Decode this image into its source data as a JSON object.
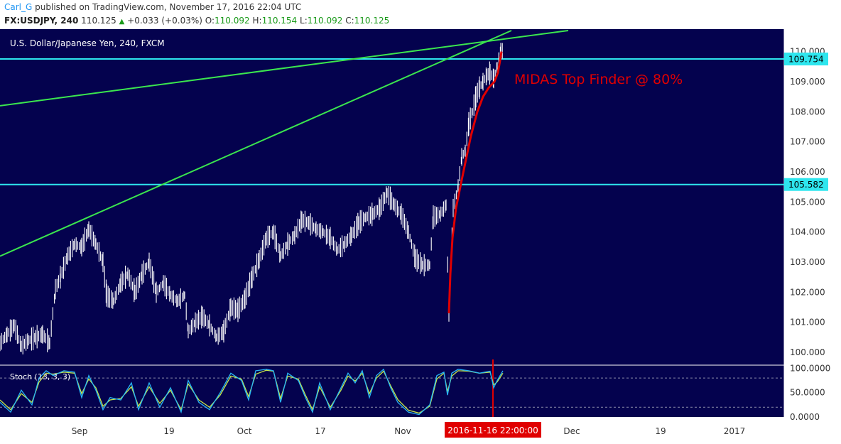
{
  "header": {
    "author": "Carl_G",
    "published_text": "published on TradingView.com, November 17, 2016 22:04 UTC",
    "symbol": "FX:USDJPY, 240",
    "last": "110.125",
    "change": "+0.033 (+0.03%)",
    "open_label": "O:",
    "open": "110.092",
    "high_label": "H:",
    "high": "110.154",
    "low_label": "L:",
    "low": "110.092",
    "close_label": "C:",
    "close": "110.125"
  },
  "chart_data": {
    "type": "line",
    "title": "U.S. Dollar/Japanese Yen, 240, FXCM",
    "annotation": "MIDAS Top Finder @ 80%",
    "ylim": [
      99.6,
      110.7
    ],
    "yticks": [
      "100.000",
      "101.000",
      "102.000",
      "103.000",
      "104.000",
      "105.000",
      "106.000",
      "107.000",
      "108.000",
      "109.000",
      "110.000"
    ],
    "xlabels": [
      "Sep",
      "19",
      "Oct",
      "17",
      "Nov",
      "Dec",
      "19",
      "2017"
    ],
    "x_cursor_label": "2016-11-16 22:00:00",
    "horizontal_levels": [
      {
        "value": 109.754,
        "label": "109.754"
      },
      {
        "value": 105.582,
        "label": "105.582"
      }
    ],
    "trendlines": [
      {
        "name": "",
        "from": [
          0,
          103.2
        ],
        "to": [
          720,
          110.7
        ]
      },
      {
        "name": "",
        "from": [
          0,
          108.2
        ],
        "to": [
          800,
          110.7
        ]
      }
    ],
    "price_series": [
      [
        0,
        100.3
      ],
      [
        10,
        100.6
      ],
      [
        20,
        100.9
      ],
      [
        30,
        100.2
      ],
      [
        40,
        100.4
      ],
      [
        50,
        100.5
      ],
      [
        60,
        100.6
      ],
      [
        70,
        100.3
      ],
      [
        78,
        102.1
      ],
      [
        85,
        102.5
      ],
      [
        95,
        103.2
      ],
      [
        105,
        103.6
      ],
      [
        115,
        103.5
      ],
      [
        125,
        104.1
      ],
      [
        135,
        103.6
      ],
      [
        145,
        103.0
      ],
      [
        150,
        101.9
      ],
      [
        160,
        101.7
      ],
      [
        170,
        102.3
      ],
      [
        180,
        102.6
      ],
      [
        190,
        102.0
      ],
      [
        200,
        102.6
      ],
      [
        210,
        103.0
      ],
      [
        220,
        102.0
      ],
      [
        230,
        102.3
      ],
      [
        240,
        101.9
      ],
      [
        250,
        101.7
      ],
      [
        260,
        101.9
      ],
      [
        265,
        100.7
      ],
      [
        275,
        101.0
      ],
      [
        285,
        101.2
      ],
      [
        295,
        100.9
      ],
      [
        305,
        100.5
      ],
      [
        315,
        100.7
      ],
      [
        325,
        101.5
      ],
      [
        335,
        101.4
      ],
      [
        345,
        101.8
      ],
      [
        355,
        102.5
      ],
      [
        365,
        103.1
      ],
      [
        375,
        103.8
      ],
      [
        385,
        104.0
      ],
      [
        395,
        103.2
      ],
      [
        405,
        103.6
      ],
      [
        415,
        103.9
      ],
      [
        425,
        104.4
      ],
      [
        435,
        104.3
      ],
      [
        445,
        104.1
      ],
      [
        455,
        104.0
      ],
      [
        465,
        103.8
      ],
      [
        475,
        103.4
      ],
      [
        485,
        103.6
      ],
      [
        495,
        103.9
      ],
      [
        505,
        104.3
      ],
      [
        515,
        104.5
      ],
      [
        525,
        104.6
      ],
      [
        535,
        104.8
      ],
      [
        545,
        105.3
      ],
      [
        555,
        104.9
      ],
      [
        565,
        104.6
      ],
      [
        575,
        104.0
      ],
      [
        585,
        103.1
      ],
      [
        595,
        102.9
      ],
      [
        605,
        102.9
      ],
      [
        610,
        104.5
      ],
      [
        620,
        104.6
      ],
      [
        628,
        104.9
      ],
      [
        632,
        101.3
      ],
      [
        638,
        104.8
      ],
      [
        645,
        105.5
      ],
      [
        650,
        106.5
      ],
      [
        655,
        106.7
      ],
      [
        660,
        107.6
      ],
      [
        665,
        108.0
      ],
      [
        670,
        108.5
      ],
      [
        675,
        108.8
      ],
      [
        680,
        109.0
      ],
      [
        685,
        109.2
      ],
      [
        690,
        109.3
      ],
      [
        695,
        109.1
      ],
      [
        700,
        109.5
      ],
      [
        705,
        110.1
      ],
      [
        708,
        110.0
      ]
    ],
    "midas_curve": [
      [
        632,
        101.3
      ],
      [
        634,
        102.6
      ],
      [
        637,
        103.8
      ],
      [
        642,
        104.8
      ],
      [
        648,
        105.5
      ],
      [
        655,
        106.3
      ],
      [
        663,
        107.2
      ],
      [
        672,
        108.0
      ],
      [
        680,
        108.5
      ],
      [
        688,
        108.8
      ],
      [
        696,
        109.0
      ],
      [
        701,
        109.3
      ],
      [
        704,
        109.7
      ],
      [
        706,
        110.0
      ]
    ],
    "stoch": {
      "label": "Stoch (13, 3, 3)",
      "ylim": [
        0,
        105
      ],
      "yticks": [
        "0.0000",
        "50.0000",
        "100.0000"
      ],
      "reference_lines": [
        20,
        80
      ],
      "k": [
        [
          0,
          30
        ],
        [
          15,
          10
        ],
        [
          30,
          55
        ],
        [
          45,
          25
        ],
        [
          55,
          80
        ],
        [
          65,
          95
        ],
        [
          75,
          85
        ],
        [
          90,
          95
        ],
        [
          105,
          92
        ],
        [
          115,
          40
        ],
        [
          125,
          85
        ],
        [
          135,
          55
        ],
        [
          145,
          15
        ],
        [
          155,
          40
        ],
        [
          170,
          35
        ],
        [
          185,
          70
        ],
        [
          195,
          15
        ],
        [
          210,
          70
        ],
        [
          225,
          20
        ],
        [
          240,
          60
        ],
        [
          255,
          10
        ],
        [
          265,
          75
        ],
        [
          280,
          30
        ],
        [
          295,
          15
        ],
        [
          310,
          50
        ],
        [
          325,
          90
        ],
        [
          340,
          75
        ],
        [
          350,
          35
        ],
        [
          360,
          95
        ],
        [
          375,
          98
        ],
        [
          385,
          95
        ],
        [
          395,
          30
        ],
        [
          405,
          90
        ],
        [
          420,
          75
        ],
        [
          430,
          40
        ],
        [
          440,
          10
        ],
        [
          450,
          70
        ],
        [
          465,
          15
        ],
        [
          480,
          60
        ],
        [
          490,
          90
        ],
        [
          500,
          70
        ],
        [
          510,
          95
        ],
        [
          520,
          40
        ],
        [
          530,
          85
        ],
        [
          540,
          98
        ],
        [
          550,
          60
        ],
        [
          560,
          30
        ],
        [
          575,
          10
        ],
        [
          590,
          5
        ],
        [
          605,
          25
        ],
        [
          615,
          85
        ],
        [
          625,
          92
        ],
        [
          630,
          45
        ],
        [
          636,
          90
        ],
        [
          645,
          98
        ],
        [
          660,
          95
        ],
        [
          675,
          90
        ],
        [
          690,
          94
        ],
        [
          695,
          60
        ],
        [
          700,
          75
        ],
        [
          708,
          95
        ]
      ],
      "d": [
        [
          0,
          35
        ],
        [
          15,
          15
        ],
        [
          30,
          48
        ],
        [
          45,
          30
        ],
        [
          55,
          72
        ],
        [
          65,
          90
        ],
        [
          75,
          88
        ],
        [
          90,
          92
        ],
        [
          105,
          90
        ],
        [
          115,
          48
        ],
        [
          125,
          78
        ],
        [
          135,
          60
        ],
        [
          145,
          22
        ],
        [
          155,
          35
        ],
        [
          170,
          38
        ],
        [
          185,
          62
        ],
        [
          195,
          22
        ],
        [
          210,
          62
        ],
        [
          225,
          28
        ],
        [
          240,
          55
        ],
        [
          255,
          15
        ],
        [
          265,
          68
        ],
        [
          280,
          35
        ],
        [
          295,
          20
        ],
        [
          310,
          45
        ],
        [
          325,
          84
        ],
        [
          340,
          78
        ],
        [
          350,
          42
        ],
        [
          360,
          88
        ],
        [
          375,
          96
        ],
        [
          385,
          94
        ],
        [
          395,
          38
        ],
        [
          405,
          84
        ],
        [
          420,
          78
        ],
        [
          430,
          45
        ],
        [
          440,
          15
        ],
        [
          450,
          62
        ],
        [
          465,
          20
        ],
        [
          480,
          55
        ],
        [
          490,
          84
        ],
        [
          500,
          74
        ],
        [
          510,
          90
        ],
        [
          520,
          48
        ],
        [
          530,
          80
        ],
        [
          540,
          94
        ],
        [
          550,
          64
        ],
        [
          560,
          36
        ],
        [
          575,
          14
        ],
        [
          590,
          8
        ],
        [
          605,
          22
        ],
        [
          615,
          78
        ],
        [
          625,
          90
        ],
        [
          630,
          52
        ],
        [
          636,
          84
        ],
        [
          645,
          95
        ],
        [
          660,
          94
        ],
        [
          675,
          90
        ],
        [
          690,
          92
        ],
        [
          695,
          66
        ],
        [
          700,
          72
        ],
        [
          708,
          90
        ]
      ]
    }
  },
  "colors": {
    "panel_bg": "#04024e",
    "price_bars": "#ffffff",
    "level_line": "#2ee6ee",
    "trendline": "#3be64e",
    "midas": "#e00000",
    "annotation_text": "#e00000",
    "stoch_k": "#27b6f5",
    "stoch_d": "#c6e74a"
  }
}
